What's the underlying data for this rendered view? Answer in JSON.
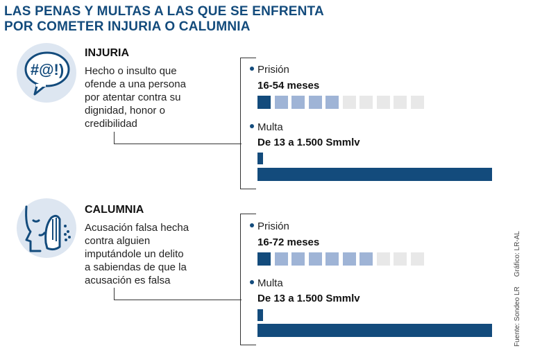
{
  "title_lines": [
    "LAS PENAS Y MULTAS A LAS QUE SE ENFRENTA",
    "POR COMETER INJURIA O CALUMNIA"
  ],
  "sections": [
    {
      "name": "INJURIA",
      "icon": "speech-bubble-swear-icon",
      "icon_text": "#@!)",
      "description_lines": [
        "Hecho o insulto que",
        "ofende a una persona",
        "por atentar contra su",
        "dignidad, honor o",
        "credibilidad"
      ],
      "prision_label": "Prisión",
      "prision_value": "16-54 meses",
      "prision_scale": {
        "dark": 1,
        "medium": 4,
        "light": 5
      },
      "multa_label": "Multa",
      "multa_value": "De 13 a 1.500 Smmlv"
    },
    {
      "name": "CALUMNIA",
      "icon": "whispering-face-icon",
      "description_lines": [
        "Acusación falsa hecha",
        "contra alguien",
        "imputándole un delito",
        "a sabiendas de que la",
        "acusación es falsa"
      ],
      "prision_label": "Prisión",
      "prision_value": "16-72 meses",
      "prision_scale": {
        "dark": 1,
        "medium": 6,
        "light": 3
      },
      "multa_label": "Multa",
      "multa_value": "De 13 a 1.500 Smmlv"
    }
  ],
  "colors": {
    "dark": "#134b7c",
    "medium": "#9fb4d6",
    "light": "#e8e8e8",
    "icon_bg": "#dde6f1"
  },
  "source": "Fuente: Sondeo LR",
  "credit": "Gráfico: LR-AL"
}
